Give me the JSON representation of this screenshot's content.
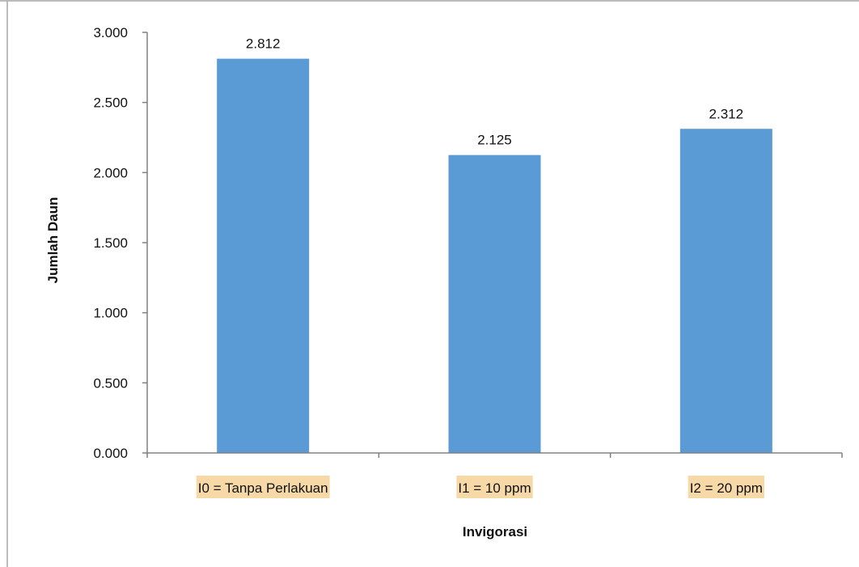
{
  "chart_data": {
    "type": "bar",
    "categories": [
      "I0 = Tanpa Perlakuan",
      "I1 = 10 ppm",
      "I2 = 20 ppm"
    ],
    "values": [
      2.812,
      2.125,
      2.312
    ],
    "value_labels": [
      "2.812",
      "2.125",
      "2.312"
    ],
    "xlabel": "Invigorasi",
    "ylabel": "Jumlah Daun",
    "ylim": [
      0,
      3
    ],
    "yticks": [
      0,
      0.5,
      1,
      1.5,
      2,
      2.5,
      3
    ],
    "ytick_labels": [
      "0.000",
      "0.500",
      "1.000",
      "1.500",
      "2.000",
      "2.500",
      "3.000"
    ],
    "grid": false,
    "legend": "none",
    "colors": {
      "bar": "#5B9BD5",
      "category_highlight": "#F7D9A8",
      "axis": "#808080",
      "frame": "#A6A6A6"
    }
  }
}
